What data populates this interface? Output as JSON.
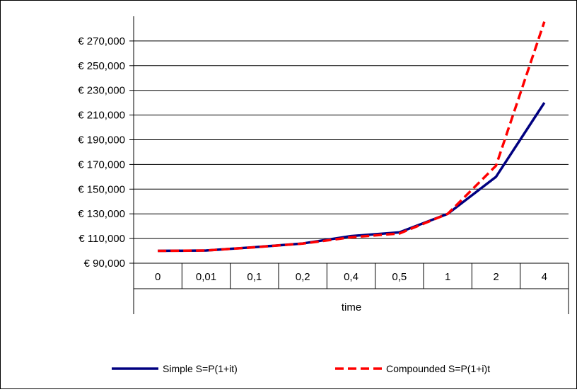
{
  "chart_data": {
    "type": "line",
    "categories": [
      "0",
      "0,01",
      "0,1",
      "0,2",
      "0,4",
      "0,5",
      "1",
      "2",
      "4"
    ],
    "xlabel": "time",
    "ylabel": "",
    "ylim": [
      90000,
      290000
    ],
    "yticks": [
      90000,
      110000,
      130000,
      150000,
      170000,
      190000,
      210000,
      230000,
      250000,
      270000
    ],
    "ytick_labels": [
      "€ 90,000",
      "€ 110,000",
      "€ 130,000",
      "€ 150,000",
      "€ 170,000",
      "€ 190,000",
      "€ 210,000",
      "€ 230,000",
      "€ 250,000",
      "€ 270,000"
    ],
    "grid": true,
    "legend_position": "bottom",
    "series": [
      {
        "name": "Simple S=P(1+it)",
        "color": "#000080",
        "style": "solid",
        "values": [
          100000,
          100300,
          103000,
          106000,
          112000,
          115000,
          130000,
          160000,
          220000
        ]
      },
      {
        "name": "Compounded S=P(1+i)t",
        "color": "#ff0000",
        "style": "dashed",
        "values": [
          100000,
          100300,
          102900,
          105900,
          111000,
          114100,
          130000,
          169000,
          285600
        ]
      }
    ]
  }
}
